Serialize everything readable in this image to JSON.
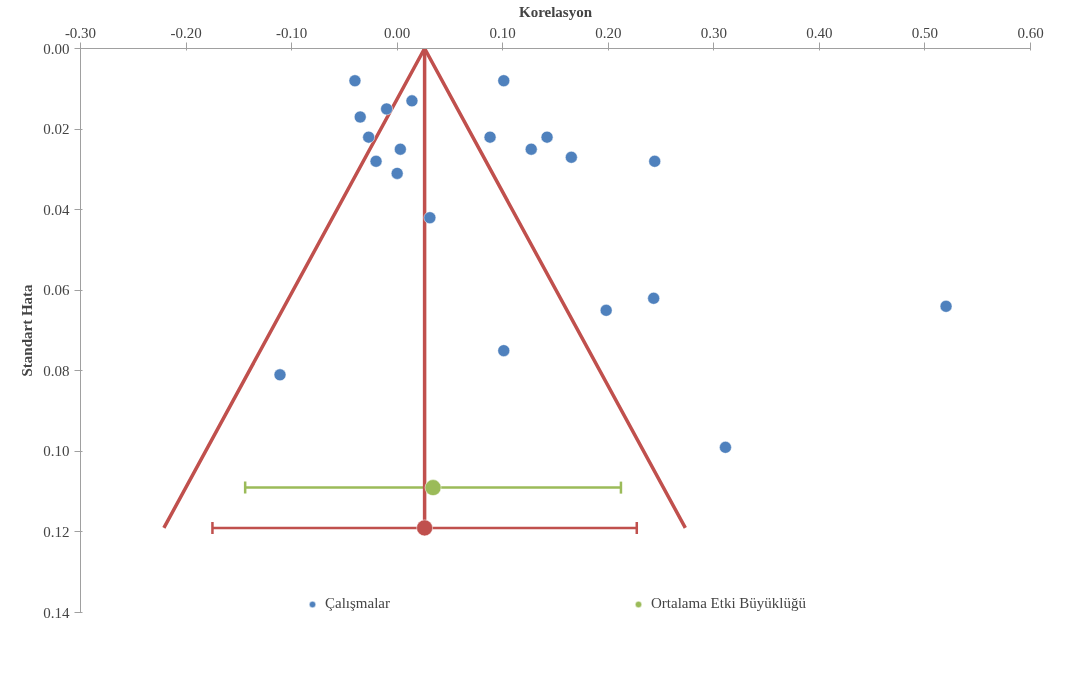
{
  "chart_data": {
    "type": "scatter",
    "xlabel": "Korelasyon",
    "ylabel": "Standart Hata",
    "xlim": [
      -0.3,
      0.6
    ],
    "xticks": [
      {
        "value": -0.3,
        "label": "-0.30"
      },
      {
        "value": -0.2,
        "label": "-0.20"
      },
      {
        "value": -0.1,
        "label": "-0.10"
      },
      {
        "value": 0,
        "label": "0.00"
      },
      {
        "value": 0.1,
        "label": "0.10"
      },
      {
        "value": 0.2,
        "label": "0.20"
      },
      {
        "value": 0.3,
        "label": "0.30"
      },
      {
        "value": 0.4,
        "label": "0.40"
      },
      {
        "value": 0.5,
        "label": "0.50"
      },
      {
        "value": 0.6,
        "label": "0.60"
      }
    ],
    "ylim": [
      0.14,
      0
    ],
    "yticks": [
      {
        "value": 0,
        "label": "0.00"
      },
      {
        "value": 0.02,
        "label": "0.02"
      },
      {
        "value": 0.04,
        "label": "0.04"
      },
      {
        "value": 0.06,
        "label": "0.06"
      },
      {
        "value": 0.08,
        "label": "0.08"
      },
      {
        "value": 0.1,
        "label": "0.10"
      },
      {
        "value": 0.12,
        "label": "0.12"
      },
      {
        "value": 0.14,
        "label": "0.14"
      }
    ],
    "grid": false,
    "legend": "bottom",
    "series": [
      {
        "type": "line",
        "marker": "none",
        "color": "#c0504d",
        "x": [
          -0.221,
          0.026,
          0.273
        ],
        "values": [
          0.119,
          0,
          0.119
        ]
      },
      {
        "type": "line",
        "marker": "none",
        "color": "#c0504d",
        "x": [
          0.026,
          0.026
        ],
        "values": [
          0,
          0.119
        ]
      },
      {
        "name": "Çalışmalar",
        "marker": "circle",
        "color": "#4f81bd",
        "x": [
          -0.04,
          0.101,
          0.014,
          -0.01,
          -0.035,
          -0.027,
          0.003,
          -0.02,
          0.0,
          0.088,
          0.142,
          0.127,
          0.165,
          0.244,
          0.031,
          0.243,
          0.198,
          0.52,
          0.101,
          -0.111,
          0.311
        ],
        "values": [
          0.008,
          0.008,
          0.013,
          0.015,
          0.017,
          0.022,
          0.025,
          0.028,
          0.031,
          0.022,
          0.022,
          0.025,
          0.027,
          0.028,
          0.042,
          0.062,
          0.065,
          0.064,
          0.075,
          0.081,
          0.099
        ]
      },
      {
        "name": "Ortalama Etki Büyüklüğü",
        "marker": "circle",
        "color": "#9bbb59",
        "x": [
          0.034
        ],
        "values": [
          0.109
        ],
        "xerrors": [
          [
            -0.144,
            0.212
          ]
        ]
      },
      {
        "marker": "circle",
        "color": "#c0504d",
        "x": [
          0.026
        ],
        "values": [
          0.119
        ],
        "xerrors": [
          [
            -0.175,
            0.227
          ]
        ]
      }
    ]
  }
}
